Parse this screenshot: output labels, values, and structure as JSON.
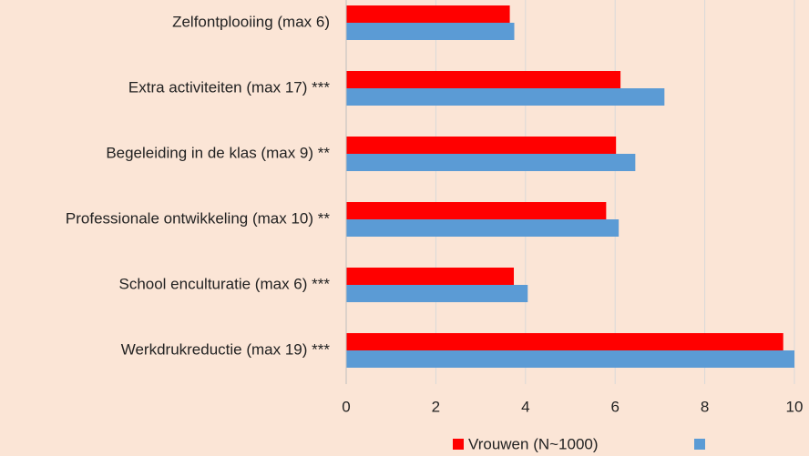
{
  "chart_data": {
    "type": "hbar",
    "categories": [
      "Zelfontplooiing (max 6)",
      "Extra activiteiten (max 17) ***",
      "Begeleiding in de klas (max 9) **",
      "Professionale ontwikkeling (max 10) **",
      "School enculturatie (max 6) ***",
      "Werkdrukreductie (max 19) ***"
    ],
    "series": [
      {
        "name": "Vrouwen (N~1000)",
        "color": "#ff0000",
        "values": [
          3.65,
          6.12,
          6.02,
          5.8,
          3.74,
          9.75
        ]
      },
      {
        "color": "#5b9bd5",
        "values": [
          3.75,
          7.1,
          6.45,
          6.08,
          4.05,
          10.0
        ]
      }
    ],
    "xlim": [
      0,
      10
    ],
    "xticks": [
      0,
      2,
      4,
      6,
      8,
      10
    ],
    "grid": true
  }
}
